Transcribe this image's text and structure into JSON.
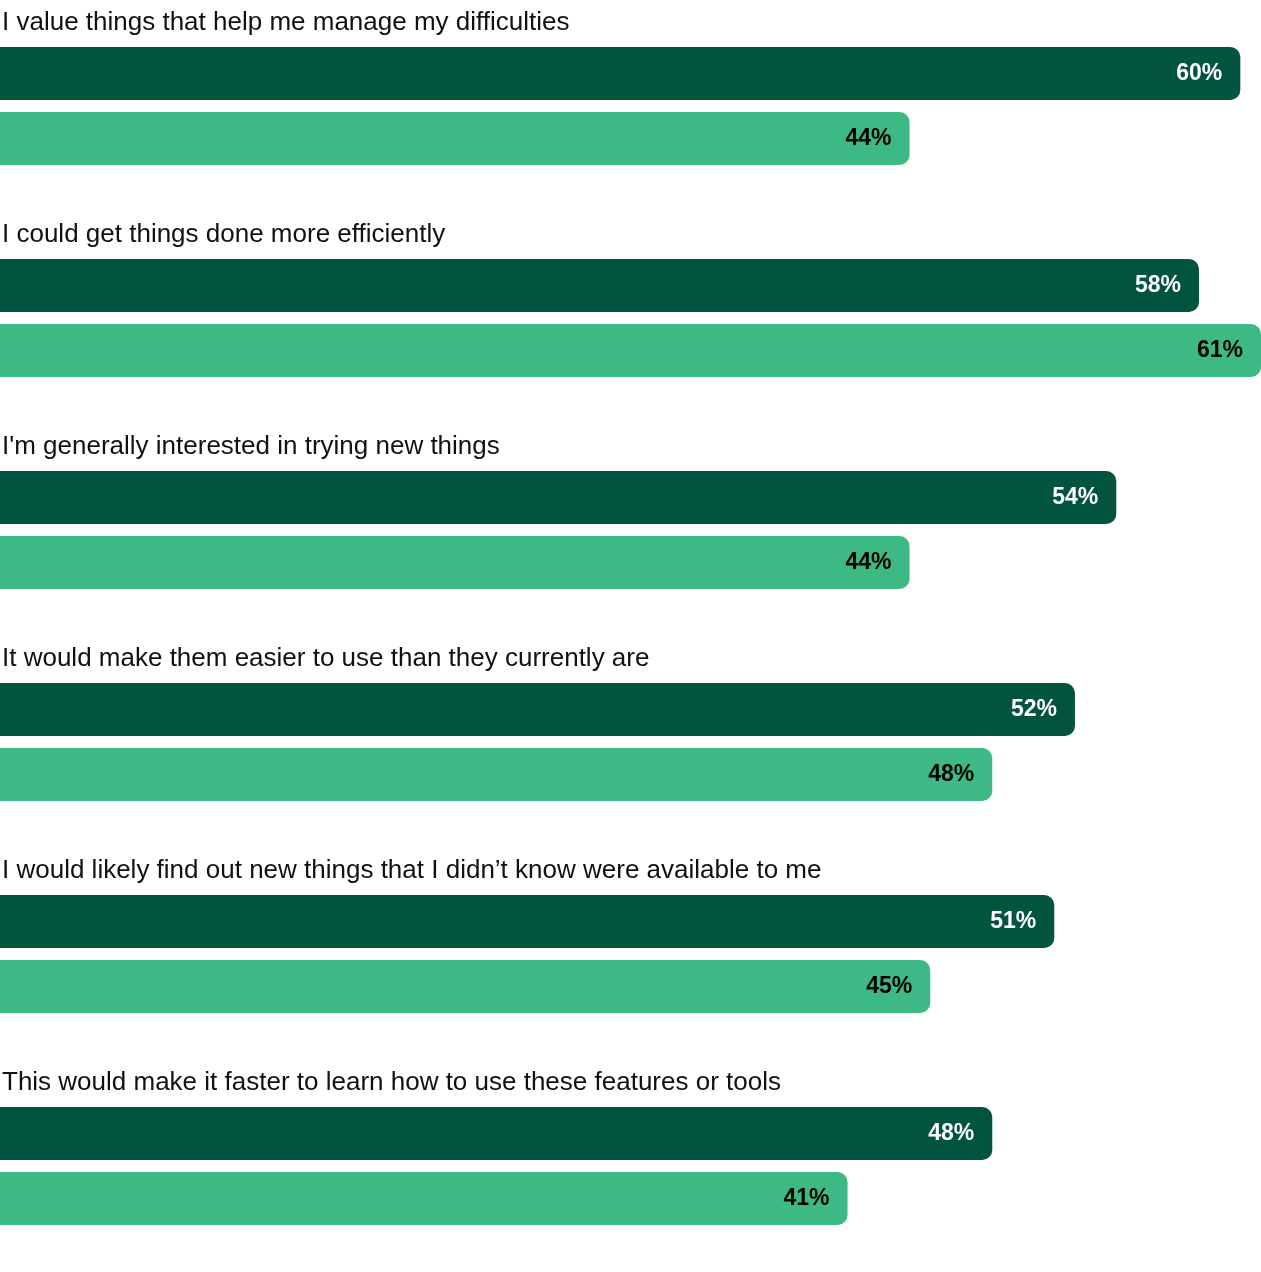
{
  "chart_data": {
    "type": "bar",
    "orientation": "horizontal",
    "categories": [
      "I value things that help me manage my difficulties",
      "I could get things done more efficiently",
      "I'm generally interested in trying new things",
      "It would make them easier to use than they currently are",
      "I would likely find out new things that I didn’t know were available to me",
      "This would make it faster to learn how to use these features or tools"
    ],
    "series": [
      {
        "color": "#03543f",
        "values": [
          60,
          58,
          54,
          52,
          51,
          48
        ],
        "value_labels": [
          "60%",
          "58%",
          "54%",
          "52%",
          "51%",
          "48%"
        ]
      },
      {
        "color": "#3dba84",
        "values": [
          44,
          61,
          44,
          48,
          45,
          41
        ],
        "value_labels": [
          "44%",
          "61%",
          "44%",
          "48%",
          "45%",
          "41%"
        ]
      }
    ],
    "legend": false
  }
}
